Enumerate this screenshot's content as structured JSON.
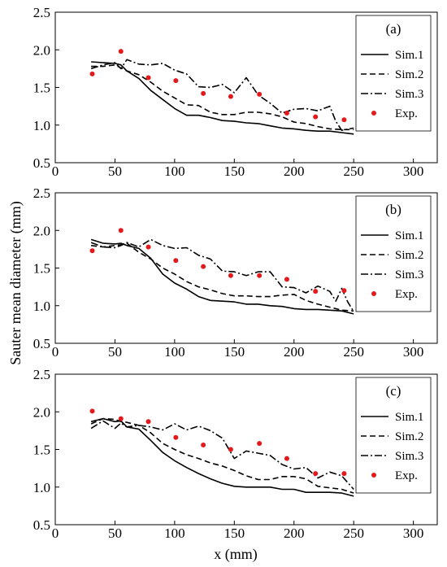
{
  "figure": {
    "xlabel": "x (mm)",
    "ylabel": "Sauter mean diameter (mm)"
  },
  "chart_data": [
    {
      "type": "line",
      "panel_label": "(a)",
      "xlim": [
        0,
        320
      ],
      "ylim": [
        0.5,
        2.5
      ],
      "xticks": [
        0,
        50,
        100,
        150,
        200,
        250,
        300
      ],
      "yticks": [
        0.5,
        1.0,
        1.5,
        2.0,
        2.5
      ],
      "xtick_labels": [
        "0",
        "50",
        "100",
        "150",
        "200",
        "250",
        "300"
      ],
      "ytick_labels": [
        "0.5",
        "1.0",
        "1.5",
        "2.0",
        "2.5"
      ],
      "legend_position": "top-right",
      "series": [
        {
          "name": "Sim.1",
          "style": "solid",
          "color": "#000000",
          "x": [
            30,
            40,
            50,
            55,
            60,
            70,
            80,
            90,
            100,
            110,
            120,
            130,
            140,
            150,
            160,
            170,
            180,
            190,
            200,
            210,
            220,
            230,
            240,
            250
          ],
          "y": [
            1.84,
            1.83,
            1.82,
            1.8,
            1.72,
            1.62,
            1.46,
            1.34,
            1.22,
            1.13,
            1.13,
            1.1,
            1.06,
            1.05,
            1.03,
            1.02,
            0.99,
            0.96,
            0.95,
            0.93,
            0.92,
            0.92,
            0.9,
            0.88
          ]
        },
        {
          "name": "Sim.2",
          "style": "dashed",
          "color": "#000000",
          "x": [
            30,
            40,
            50,
            55,
            60,
            70,
            80,
            90,
            100,
            110,
            120,
            130,
            140,
            150,
            160,
            170,
            180,
            190,
            200,
            210,
            220,
            230,
            240,
            250
          ],
          "y": [
            1.78,
            1.78,
            1.8,
            1.76,
            1.72,
            1.67,
            1.57,
            1.45,
            1.36,
            1.27,
            1.26,
            1.17,
            1.14,
            1.14,
            1.17,
            1.17,
            1.15,
            1.11,
            1.04,
            1.02,
            0.98,
            0.95,
            0.94,
            0.94
          ]
        },
        {
          "name": "Sim.3",
          "style": "dashdot",
          "color": "#000000",
          "x": [
            30,
            40,
            50,
            55,
            60,
            70,
            80,
            90,
            100,
            110,
            120,
            130,
            140,
            150,
            160,
            170,
            180,
            190,
            200,
            210,
            220,
            230,
            235,
            240,
            250
          ],
          "y": [
            1.75,
            1.8,
            1.83,
            1.75,
            1.87,
            1.81,
            1.8,
            1.82,
            1.73,
            1.68,
            1.51,
            1.5,
            1.54,
            1.43,
            1.63,
            1.4,
            1.29,
            1.16,
            1.21,
            1.22,
            1.19,
            1.25,
            1.05,
            0.93,
            0.96
          ]
        },
        {
          "name": "Exp.",
          "style": "markers",
          "color": "#e31a1c",
          "x": [
            31,
            55,
            78,
            101,
            124,
            147,
            171,
            194,
            218,
            242
          ],
          "y": [
            1.68,
            1.98,
            1.63,
            1.59,
            1.42,
            1.38,
            1.41,
            1.16,
            1.11,
            1.07
          ]
        }
      ]
    },
    {
      "type": "line",
      "panel_label": "(b)",
      "xlim": [
        0,
        320
      ],
      "ylim": [
        0.5,
        2.5
      ],
      "xticks": [
        0,
        50,
        100,
        150,
        200,
        250,
        300
      ],
      "yticks": [
        0.5,
        1.0,
        1.5,
        2.0,
        2.5
      ],
      "xtick_labels": [
        "0",
        "50",
        "100",
        "150",
        "200",
        "250",
        "300"
      ],
      "ytick_labels": [
        "0.5",
        "1.0",
        "1.5",
        "2.0",
        "2.5"
      ],
      "legend_position": "top-right",
      "series": [
        {
          "name": "Sim.1",
          "style": "solid",
          "color": "#000000",
          "x": [
            30,
            40,
            50,
            55,
            60,
            70,
            80,
            90,
            100,
            110,
            120,
            130,
            140,
            150,
            160,
            170,
            180,
            190,
            200,
            210,
            220,
            230,
            240,
            250
          ],
          "y": [
            1.88,
            1.83,
            1.82,
            1.83,
            1.8,
            1.76,
            1.63,
            1.42,
            1.3,
            1.22,
            1.12,
            1.07,
            1.06,
            1.05,
            1.02,
            1.02,
            1.0,
            0.99,
            0.96,
            0.95,
            0.95,
            0.94,
            0.93,
            0.89
          ]
        },
        {
          "name": "Sim.2",
          "style": "dashed",
          "color": "#000000",
          "x": [
            30,
            40,
            50,
            55,
            60,
            70,
            80,
            90,
            100,
            110,
            120,
            130,
            140,
            150,
            160,
            170,
            180,
            190,
            200,
            210,
            220,
            230,
            240,
            250
          ],
          "y": [
            1.8,
            1.78,
            1.8,
            1.81,
            1.83,
            1.71,
            1.62,
            1.5,
            1.42,
            1.32,
            1.25,
            1.21,
            1.16,
            1.13,
            1.13,
            1.12,
            1.12,
            1.14,
            1.15,
            1.07,
            1.02,
            0.98,
            0.94,
            0.93
          ]
        },
        {
          "name": "Sim.3",
          "style": "dashdot",
          "color": "#000000",
          "x": [
            30,
            40,
            50,
            55,
            60,
            70,
            80,
            90,
            100,
            110,
            120,
            130,
            140,
            150,
            160,
            170,
            180,
            190,
            200,
            210,
            220,
            230,
            235,
            240,
            245,
            250
          ],
          "y": [
            1.84,
            1.78,
            1.77,
            1.8,
            1.84,
            1.78,
            1.88,
            1.8,
            1.76,
            1.77,
            1.67,
            1.62,
            1.46,
            1.45,
            1.4,
            1.45,
            1.45,
            1.25,
            1.24,
            1.17,
            1.26,
            1.19,
            1.06,
            1.23,
            1.05,
            0.92
          ]
        },
        {
          "name": "Exp.",
          "style": "markers",
          "color": "#e31a1c",
          "x": [
            31,
            55,
            78,
            101,
            124,
            147,
            171,
            194,
            218,
            242
          ],
          "y": [
            1.73,
            2.0,
            1.78,
            1.6,
            1.52,
            1.4,
            1.4,
            1.35,
            1.19,
            1.2
          ]
        }
      ]
    },
    {
      "type": "line",
      "panel_label": "(c)",
      "xlim": [
        0,
        320
      ],
      "ylim": [
        0.5,
        2.5
      ],
      "xticks": [
        0,
        50,
        100,
        150,
        200,
        250,
        300
      ],
      "yticks": [
        0.5,
        1.0,
        1.5,
        2.0,
        2.5
      ],
      "xtick_labels": [
        "0",
        "50",
        "100",
        "150",
        "200",
        "250",
        "300"
      ],
      "ytick_labels": [
        "0.5",
        "1.0",
        "1.5",
        "2.0",
        "2.5"
      ],
      "legend_position": "top-right",
      "series": [
        {
          "name": "Sim.1",
          "style": "solid",
          "color": "#000000",
          "x": [
            30,
            40,
            50,
            55,
            60,
            70,
            80,
            90,
            100,
            110,
            120,
            130,
            140,
            150,
            160,
            170,
            180,
            190,
            200,
            210,
            220,
            230,
            240,
            250
          ],
          "y": [
            1.87,
            1.91,
            1.87,
            1.88,
            1.8,
            1.77,
            1.62,
            1.46,
            1.35,
            1.26,
            1.18,
            1.11,
            1.05,
            1.01,
            1.0,
            1.0,
            1.0,
            0.97,
            0.97,
            0.93,
            0.93,
            0.93,
            0.92,
            0.88
          ]
        },
        {
          "name": "Sim.2",
          "style": "dashed",
          "color": "#000000",
          "x": [
            30,
            40,
            50,
            55,
            60,
            70,
            80,
            90,
            100,
            110,
            120,
            130,
            140,
            150,
            160,
            170,
            180,
            190,
            200,
            210,
            220,
            230,
            240,
            250
          ],
          "y": [
            1.84,
            1.91,
            1.9,
            1.87,
            1.86,
            1.82,
            1.72,
            1.58,
            1.5,
            1.43,
            1.38,
            1.32,
            1.28,
            1.22,
            1.15,
            1.1,
            1.1,
            1.14,
            1.14,
            1.11,
            1.01,
            0.99,
            0.97,
            0.92
          ]
        },
        {
          "name": "Sim.3",
          "style": "dashdot",
          "color": "#000000",
          "x": [
            30,
            40,
            50,
            55,
            60,
            70,
            80,
            90,
            100,
            110,
            120,
            130,
            140,
            150,
            160,
            170,
            180,
            190,
            200,
            210,
            220,
            230,
            240,
            250
          ],
          "y": [
            1.78,
            1.88,
            1.78,
            1.85,
            1.8,
            1.82,
            1.8,
            1.76,
            1.84,
            1.76,
            1.81,
            1.75,
            1.65,
            1.38,
            1.48,
            1.45,
            1.42,
            1.3,
            1.24,
            1.26,
            1.12,
            1.2,
            1.15,
            0.97
          ]
        },
        {
          "name": "Exp.",
          "style": "markers",
          "color": "#e31a1c",
          "x": [
            31,
            55,
            78,
            101,
            124,
            147,
            171,
            194,
            218,
            242
          ],
          "y": [
            2.01,
            1.91,
            1.87,
            1.66,
            1.56,
            1.5,
            1.58,
            1.38,
            1.18,
            1.18
          ]
        }
      ]
    }
  ]
}
